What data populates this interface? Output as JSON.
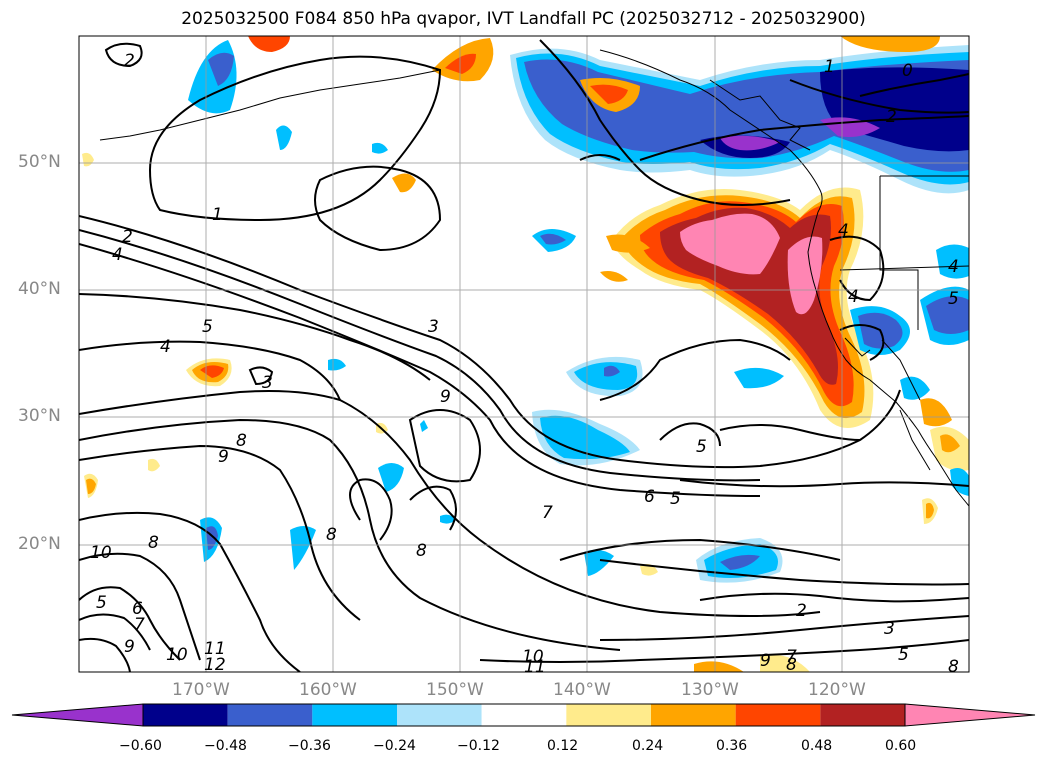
{
  "title": "2025032500 F084 850 hPa qvapor, IVT Landfall PC (2025032712 - 2025032900)",
  "lat_labels": [
    "50°N",
    "40°N",
    "30°N",
    "20°N"
  ],
  "lon_labels": [
    "170°W",
    "160°W",
    "150°W",
    "140°W",
    "130°W",
    "120°W"
  ],
  "colorbar": {
    "ticks": [
      "−0.60",
      "−0.48",
      "−0.36",
      "−0.24",
      "−0.12",
      "0.12",
      "0.24",
      "0.36",
      "0.48",
      "0.60"
    ],
    "colors": [
      "#9932CC",
      "#00008B",
      "#3A5FCD",
      "#00BFFF",
      "#ADE3FA",
      "#FFFFFF",
      "#FFEB8C",
      "#FFA500",
      "#FF4500",
      "#B22222",
      "#FF85B3"
    ],
    "extend": "both"
  },
  "contour_labels": [
    "2",
    "1",
    "2",
    "4",
    "5",
    "4",
    "3",
    "3",
    "9",
    "8",
    "9",
    "10",
    "8",
    "5",
    "6",
    "7",
    "9",
    "10",
    "11",
    "12",
    "8",
    "8",
    "7",
    "6",
    "5",
    "5",
    "2",
    "3",
    "5",
    "10",
    "11",
    "8",
    "9",
    "7",
    "8",
    "1",
    "0",
    "2",
    "4",
    "4",
    "5",
    "4"
  ]
}
